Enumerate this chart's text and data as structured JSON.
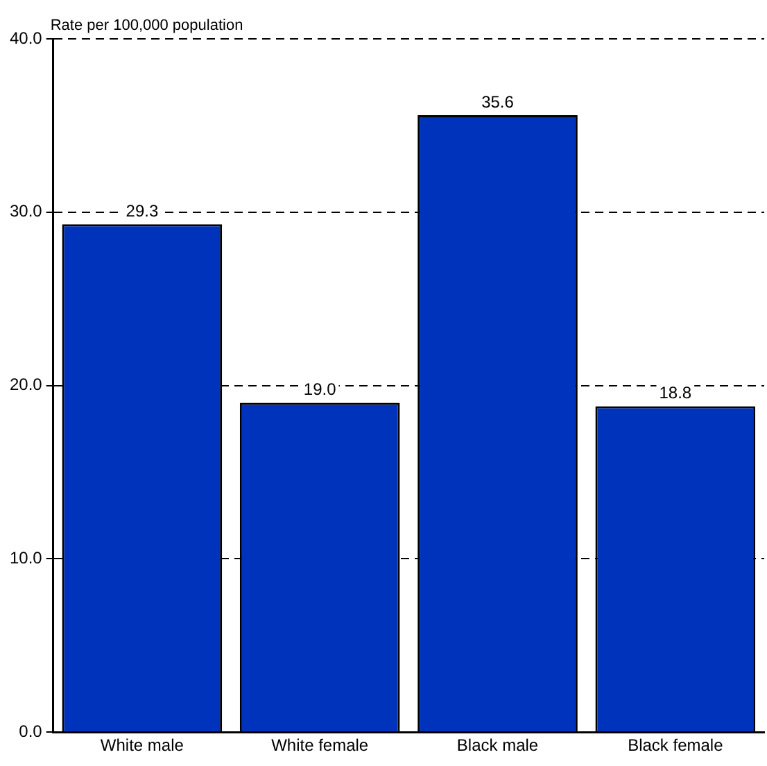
{
  "chart_data": {
    "type": "bar",
    "ylabel": "Rate per 100,000 population",
    "categories": [
      "White male",
      "White female",
      "Black male",
      "Black female"
    ],
    "values": [
      29.3,
      19.0,
      35.6,
      18.8
    ],
    "value_labels": [
      "29.3",
      "19.0",
      "35.6",
      "18.8"
    ],
    "color": "#0033bb",
    "ylim": [
      0,
      40
    ],
    "yticks": [
      {
        "value": 0,
        "label": "0.0"
      },
      {
        "value": 10,
        "label": "10.0"
      },
      {
        "value": 20,
        "label": "20.0"
      },
      {
        "value": 30,
        "label": "30.0"
      },
      {
        "value": 40,
        "label": "40.0"
      }
    ],
    "grid": "y",
    "legend": false
  }
}
